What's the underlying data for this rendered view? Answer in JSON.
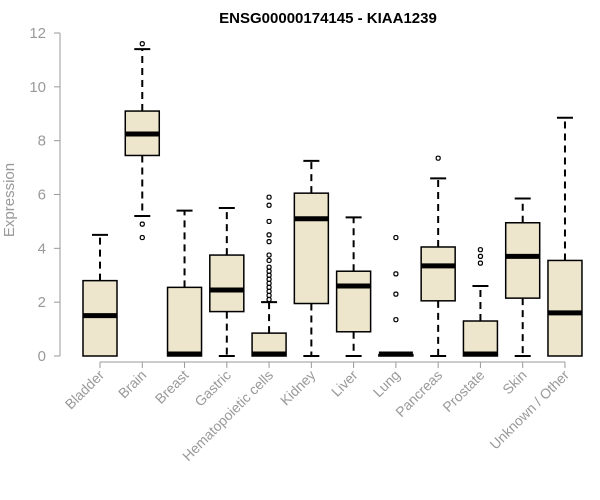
{
  "chart_data": {
    "type": "boxplot",
    "title": "ENSG00000174145 - KIAA1239",
    "xlabel": "",
    "ylabel": "Expression",
    "ylim": [
      0,
      12
    ],
    "yticks": [
      0,
      2,
      4,
      6,
      8,
      10,
      12
    ],
    "colors": {
      "box_fill": "#ede5cc",
      "stroke": "#000000",
      "axis_text": "#999999"
    },
    "categories": [
      "Bladder",
      "Brain",
      "Breast",
      "Gastric",
      "Hematopoietic cells",
      "Kidney",
      "Liver",
      "Lung",
      "Pancreas",
      "Prostate",
      "Skin",
      "Unknown / Other"
    ],
    "boxes": [
      {
        "category": "Bladder",
        "min": 0,
        "q1": 0,
        "median": 1.5,
        "q3": 2.8,
        "max": 4.5,
        "outliers": []
      },
      {
        "category": "Brain",
        "min": 5.2,
        "q1": 7.45,
        "median": 8.25,
        "q3": 9.1,
        "max": 11.4,
        "outliers": [
          4.4,
          4.9,
          11.6
        ]
      },
      {
        "category": "Breast",
        "min": 0,
        "q1": 0,
        "median": 0.05,
        "q3": 2.55,
        "max": 5.4,
        "outliers": []
      },
      {
        "category": "Gastric",
        "min": 0,
        "q1": 1.65,
        "median": 2.45,
        "q3": 3.75,
        "max": 5.5,
        "outliers": []
      },
      {
        "category": "Hematopoietic cells",
        "min": 0,
        "q1": 0,
        "median": 0.05,
        "q3": 0.85,
        "max": 2.0,
        "outliers": [
          2.1,
          2.25,
          2.4,
          2.55,
          2.7,
          2.85,
          3.0,
          3.15,
          3.3,
          3.55,
          3.75,
          4.25,
          4.5,
          5.0,
          5.6,
          5.9
        ]
      },
      {
        "category": "Kidney",
        "min": 0,
        "q1": 1.95,
        "median": 5.1,
        "q3": 6.05,
        "max": 7.25,
        "outliers": []
      },
      {
        "category": "Liver",
        "min": 0,
        "q1": 0.9,
        "median": 2.6,
        "q3": 3.15,
        "max": 5.15,
        "outliers": []
      },
      {
        "category": "Lung",
        "min": 0,
        "q1": 0,
        "median": 0.02,
        "q3": 0.05,
        "max": 0.05,
        "outliers": [
          1.35,
          2.3,
          3.05,
          4.4
        ]
      },
      {
        "category": "Pancreas",
        "min": 0,
        "q1": 2.05,
        "median": 3.35,
        "q3": 4.05,
        "max": 6.6,
        "outliers": [
          7.35
        ]
      },
      {
        "category": "Prostate",
        "min": 0,
        "q1": 0,
        "median": 0.05,
        "q3": 1.3,
        "max": 2.6,
        "outliers": [
          3.45,
          3.7,
          3.95
        ]
      },
      {
        "category": "Skin",
        "min": 0,
        "q1": 2.15,
        "median": 3.7,
        "q3": 4.95,
        "max": 5.85,
        "outliers": []
      },
      {
        "category": "Unknown / Other",
        "min": 0,
        "q1": 0,
        "median": 1.6,
        "q3": 3.55,
        "max": 8.85,
        "outliers": []
      }
    ]
  }
}
